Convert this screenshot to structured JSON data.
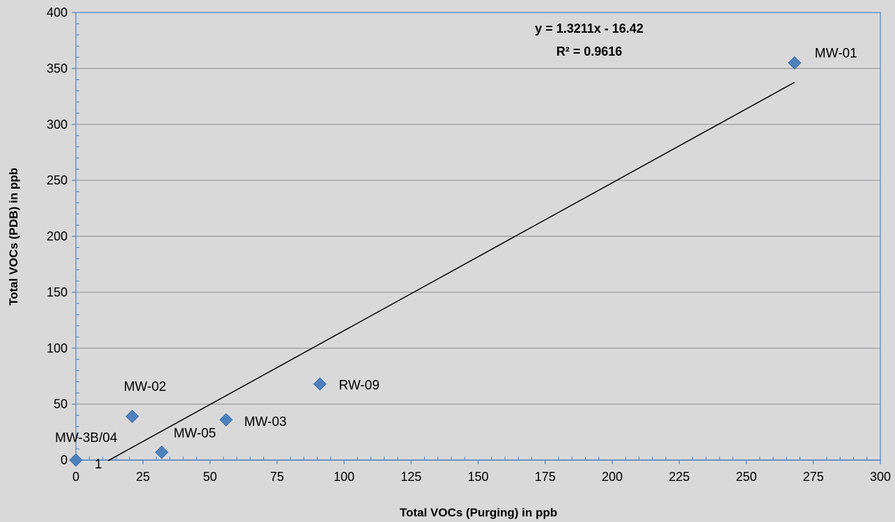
{
  "chart_data": {
    "type": "scatter",
    "title": "",
    "xlabel": "Total VOCs (Purging) in ppb",
    "ylabel": "Total VOCs (PDB)  in ppb",
    "xlim": [
      0,
      300
    ],
    "ylim": [
      0,
      400
    ],
    "x_ticks": [
      "0",
      "25",
      "50",
      "75",
      "100",
      "125",
      "150",
      "175",
      "200",
      "225",
      "250",
      "275",
      "300"
    ],
    "y_ticks": [
      "0",
      "50",
      "100",
      "150",
      "200",
      "250",
      "300",
      "350",
      "400"
    ],
    "grid": "horizontal",
    "legend": "none",
    "marker_color": "#4f81bd",
    "points": [
      {
        "label": "MW-3B/04",
        "x": 0,
        "y": 0
      },
      {
        "label": "MW-02",
        "x": 21,
        "y": 39
      },
      {
        "label": "MW-05",
        "x": 32,
        "y": 7
      },
      {
        "label": "MW-03",
        "x": 56,
        "y": 36
      },
      {
        "label": "RW-09",
        "x": 91,
        "y": 68
      },
      {
        "label": "MW-01",
        "x": 268,
        "y": 355
      }
    ],
    "extra_label": "1",
    "trendline": {
      "type": "linear",
      "slope": 1.3211,
      "intercept": -16.42,
      "x_range": [
        12,
        268
      ],
      "equation": "y = 1.3211x - 16.42",
      "r_squared": "R² = 0.9616"
    }
  }
}
